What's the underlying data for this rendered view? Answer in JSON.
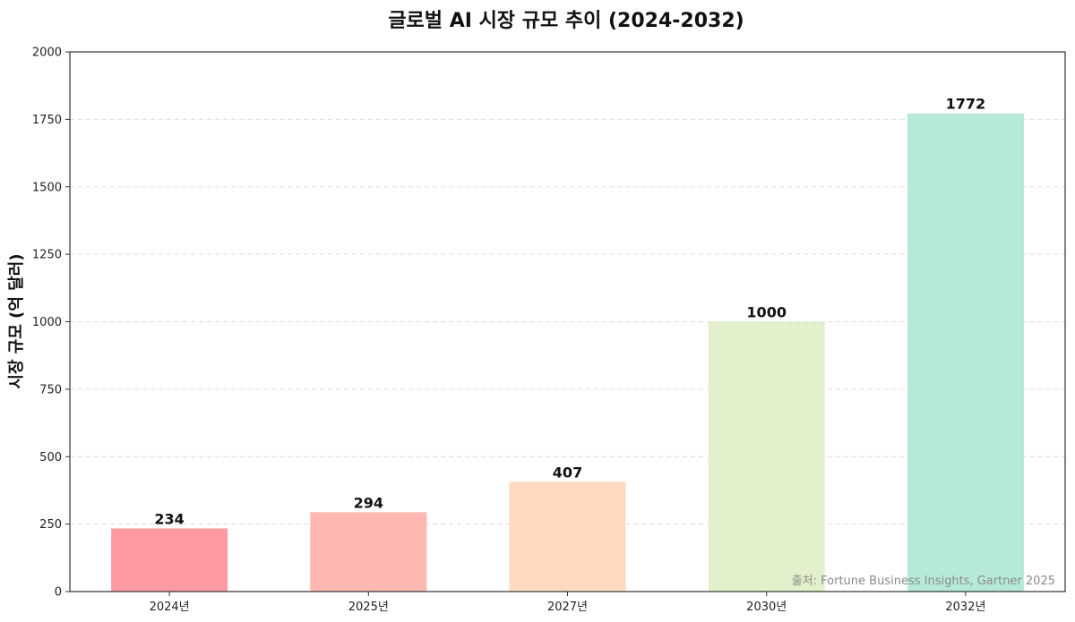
{
  "chart_data": {
    "type": "bar",
    "title": "글로벌 AI 시장 규모 추이 (2024-2032)",
    "xlabel": "",
    "ylabel": "시장 규모 (억 달러)",
    "categories": [
      "2024년",
      "2025년",
      "2027년",
      "2030년",
      "2032년"
    ],
    "values": [
      234,
      294,
      407,
      1000,
      1772
    ],
    "value_labels": [
      "234",
      "294",
      "407",
      "1000",
      "1772"
    ],
    "colors": [
      "#FF9AA2",
      "#FFB7B2",
      "#FFDAC1",
      "#E2F0CB",
      "#B5EAD7"
    ],
    "ylim": [
      0,
      2000
    ],
    "yticks": [
      0,
      250,
      500,
      750,
      1000,
      1250,
      1500,
      1750,
      2000
    ],
    "grid": "horizontal-dashed",
    "legend": "none",
    "source": "출처: Fortune Business Insights, Gartner 2025"
  }
}
